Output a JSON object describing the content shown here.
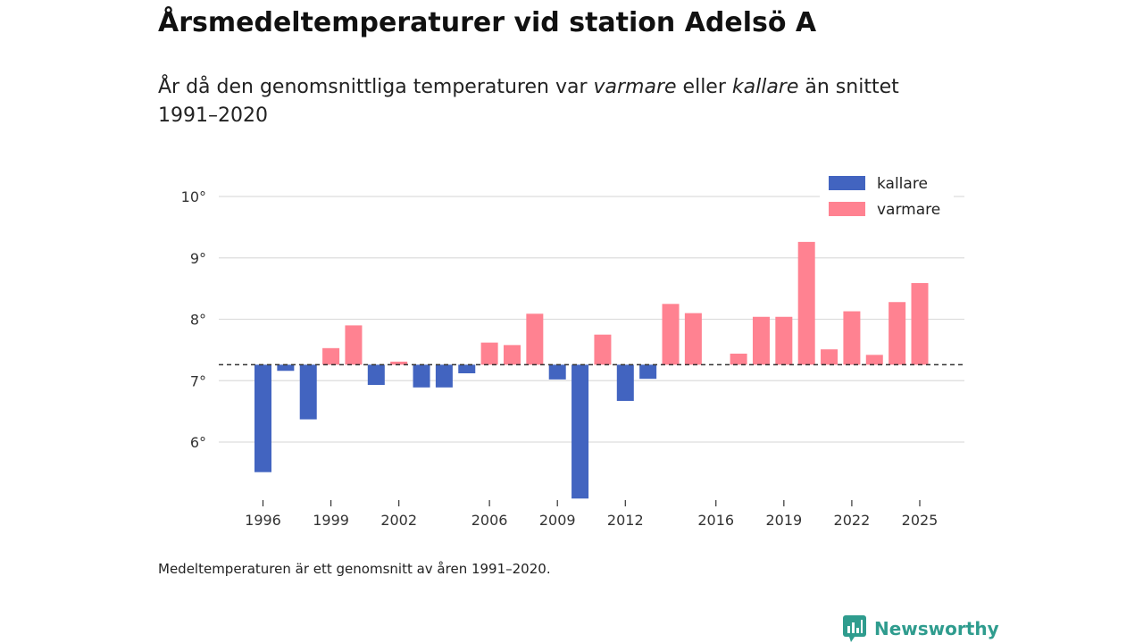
{
  "title": "Årsmedeltemperaturer vid station Adelsö A",
  "subtitle": {
    "part1": "År då den genomsnittliga temperaturen var ",
    "em1": "varmare",
    "part2": " eller ",
    "em2": "kallare",
    "part3": " än snittet 1991–2020"
  },
  "footnote": "Medeltemperaturen är ett genomsnitt av åren 1991–2020.",
  "brand": "Newsworthy",
  "colors": {
    "kallare": "#4264c0",
    "varmare": "#ff8291",
    "grid": "#dddddd",
    "baseline": "#333333",
    "brand": "#2f9c8e"
  },
  "chart_data": {
    "type": "bar",
    "title": "Årsmedeltemperaturer vid station Adelsö A",
    "baseline": 7.26,
    "ylim": [
      5.1,
      10.3
    ],
    "yticks": [
      6,
      7,
      8,
      9,
      10
    ],
    "ytick_labels": [
      "6°",
      "7°",
      "8°",
      "9°",
      "10°"
    ],
    "xticks": [
      1996,
      1999,
      2002,
      2006,
      2009,
      2012,
      2016,
      2019,
      2022,
      2025
    ],
    "xtick_labels": [
      "1996",
      "1999",
      "2002",
      "2006",
      "2009",
      "2012",
      "2016",
      "2019",
      "2022",
      "2025"
    ],
    "xlim": [
      1995,
      2026
    ],
    "legend": [
      {
        "key": "kallare",
        "label": "kallare"
      },
      {
        "key": "varmare",
        "label": "varmare"
      }
    ],
    "legend_position": "top-right",
    "years": [
      1996,
      1997,
      1998,
      1999,
      2000,
      2001,
      2002,
      2003,
      2004,
      2005,
      2006,
      2007,
      2008,
      2009,
      2010,
      2011,
      2012,
      2013,
      2014,
      2015,
      2017,
      2018,
      2019,
      2020,
      2021,
      2022,
      2023,
      2024,
      2025
    ],
    "values": [
      5.51,
      7.16,
      6.37,
      7.53,
      7.9,
      6.93,
      7.31,
      6.89,
      6.89,
      7.12,
      7.62,
      7.58,
      8.09,
      7.02,
      5.08,
      7.75,
      6.67,
      7.03,
      8.25,
      8.1,
      7.44,
      8.04,
      8.04,
      9.26,
      7.51,
      8.13,
      7.42,
      8.28,
      8.59
    ]
  }
}
